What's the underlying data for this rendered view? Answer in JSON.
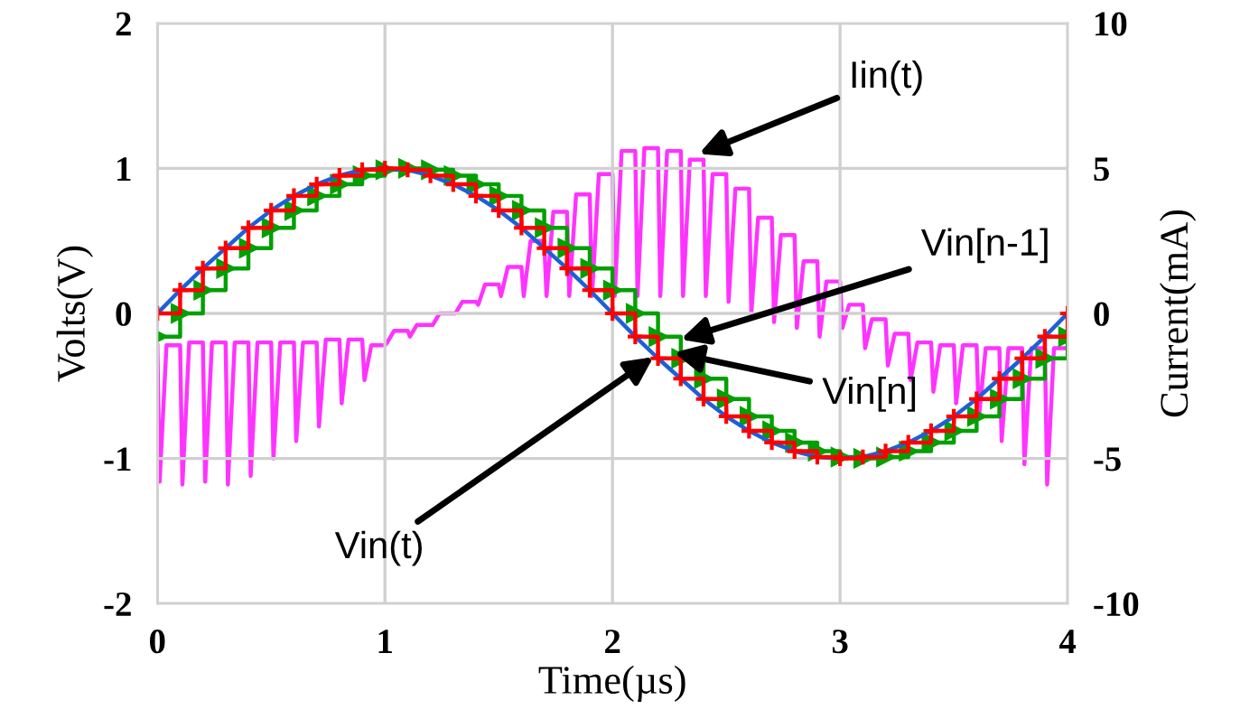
{
  "chart_data": {
    "type": "line",
    "xlabel": "Time(µs)",
    "ylabel": "Volts(V)",
    "y2label": "Current(mA)",
    "xlim": [
      0,
      4
    ],
    "xticks": [
      0,
      1,
      2,
      3,
      4
    ],
    "ylim": [
      -2,
      2
    ],
    "yticks": [
      -2,
      -1,
      0,
      1,
      2
    ],
    "y2lim": [
      -10,
      10
    ],
    "y2ticks": [
      -10,
      -5,
      0,
      5,
      10
    ],
    "grid": true,
    "legend": false,
    "x": [
      0,
      0.1,
      0.2,
      0.3,
      0.4,
      0.5,
      0.6,
      0.7,
      0.8,
      0.9,
      1.0,
      1.1,
      1.2,
      1.3,
      1.4,
      1.5,
      1.6,
      1.7,
      1.8,
      1.9,
      2.0,
      2.1,
      2.2,
      2.3,
      2.4,
      2.5,
      2.6,
      2.7,
      2.8,
      2.9,
      3.0,
      3.1,
      3.2,
      3.3,
      3.4,
      3.5,
      3.6,
      3.7,
      3.8,
      3.9,
      4.0
    ],
    "series": [
      {
        "type": "line",
        "color": "#ff33ff",
        "axis": "y2",
        "marker": "none",
        "x": [
          0,
          0.01,
          0.04,
          0.1,
          0.11,
          0.14,
          0.2,
          0.21,
          0.24,
          0.3,
          0.31,
          0.34,
          0.4,
          0.41,
          0.44,
          0.5,
          0.51,
          0.54,
          0.6,
          0.61,
          0.64,
          0.7,
          0.71,
          0.74,
          0.8,
          0.81,
          0.84,
          0.9,
          0.91,
          0.94,
          1.0,
          1.01,
          1.04,
          1.1,
          1.11,
          1.14,
          1.2,
          1.21,
          1.24,
          1.3,
          1.31,
          1.34,
          1.4,
          1.41,
          1.44,
          1.5,
          1.51,
          1.54,
          1.6,
          1.61,
          1.64,
          1.7,
          1.71,
          1.74,
          1.8,
          1.81,
          1.84,
          1.9,
          1.91,
          1.94,
          2.0,
          2.01,
          2.04,
          2.1,
          2.11,
          2.14,
          2.2,
          2.21,
          2.24,
          2.3,
          2.31,
          2.34,
          2.4,
          2.41,
          2.44,
          2.5,
          2.51,
          2.54,
          2.6,
          2.61,
          2.64,
          2.7,
          2.71,
          2.74,
          2.8,
          2.81,
          2.84,
          2.9,
          2.91,
          2.94,
          3.0,
          3.01,
          3.04,
          3.1,
          3.11,
          3.14,
          3.2,
          3.21,
          3.24,
          3.3,
          3.31,
          3.34,
          3.4,
          3.41,
          3.44,
          3.5,
          3.51,
          3.54,
          3.6,
          3.61,
          3.64,
          3.7,
          3.71,
          3.74,
          3.8,
          3.81,
          3.84,
          3.9,
          3.91,
          3.94,
          4.0
        ],
        "values": [
          -1.1,
          -5.8,
          -1.1,
          -1.1,
          -5.9,
          -1.0,
          -1.0,
          -5.8,
          -1.0,
          -1.0,
          -5.9,
          -1.0,
          -1.0,
          -5.6,
          -1.0,
          -1.0,
          -5.0,
          -1.0,
          -1.0,
          -4.4,
          -1.0,
          -1.0,
          -3.9,
          -0.9,
          -0.9,
          -3.1,
          -0.9,
          -0.9,
          -2.3,
          -1.1,
          -1.1,
          -1.0,
          -0.6,
          -0.6,
          -0.8,
          -0.4,
          -0.4,
          -0.4,
          0.0,
          0.0,
          0.0,
          0.4,
          0.4,
          0.3,
          1.0,
          1.0,
          0.6,
          1.6,
          1.6,
          0.6,
          2.5,
          2.5,
          0.6,
          3.5,
          3.5,
          0.6,
          4.1,
          4.1,
          0.6,
          4.8,
          4.8,
          0.6,
          5.6,
          5.6,
          0.6,
          5.7,
          5.7,
          0.6,
          5.6,
          5.6,
          0.6,
          5.3,
          5.3,
          0.6,
          4.8,
          4.8,
          0.4,
          4.3,
          4.3,
          0.0,
          3.3,
          3.3,
          -0.3,
          2.7,
          2.7,
          -0.5,
          1.8,
          1.8,
          -0.8,
          1.1,
          1.1,
          -0.5,
          0.3,
          0.3,
          -1.2,
          -0.2,
          -0.2,
          -1.8,
          -0.7,
          -0.7,
          -2.3,
          -1.0,
          -1.0,
          -2.7,
          -1.1,
          -1.1,
          -3.1,
          -1.1,
          -1.1,
          -3.6,
          -1.2,
          -1.2,
          -4.4,
          -1.2,
          -1.2,
          -5.2,
          -1.2,
          -1.2,
          -5.9,
          -1.2,
          -1.2
        ]
      },
      {
        "type": "step",
        "color": "#00a000",
        "marker": "triangle",
        "values": [
          -0.16,
          0,
          0.16,
          0.31,
          0.45,
          0.59,
          0.71,
          0.81,
          0.89,
          0.95,
          0.99,
          1,
          0.99,
          0.95,
          0.89,
          0.81,
          0.71,
          0.59,
          0.45,
          0.31,
          0.16,
          0,
          -0.16,
          -0.31,
          -0.45,
          -0.59,
          -0.71,
          -0.81,
          -0.89,
          -0.95,
          -0.99,
          -1,
          -0.99,
          -0.95,
          -0.89,
          -0.81,
          -0.71,
          -0.59,
          -0.45,
          -0.31,
          -0.16
        ]
      },
      {
        "type": "line",
        "color": "#1f5fd6",
        "marker": "none",
        "values": [
          0,
          0.16,
          0.31,
          0.45,
          0.59,
          0.71,
          0.81,
          0.89,
          0.95,
          0.99,
          1,
          0.99,
          0.95,
          0.89,
          0.81,
          0.71,
          0.59,
          0.45,
          0.31,
          0.16,
          0,
          -0.16,
          -0.31,
          -0.45,
          -0.59,
          -0.71,
          -0.81,
          -0.89,
          -0.95,
          -0.99,
          -1,
          -0.99,
          -0.95,
          -0.89,
          -0.81,
          -0.71,
          -0.59,
          -0.45,
          -0.31,
          -0.16,
          0
        ]
      },
      {
        "type": "step",
        "color": "#ff0000",
        "marker": "cross",
        "values": [
          0,
          0.16,
          0.31,
          0.45,
          0.59,
          0.71,
          0.81,
          0.89,
          0.95,
          0.99,
          1,
          0.99,
          0.95,
          0.89,
          0.81,
          0.71,
          0.59,
          0.45,
          0.31,
          0.16,
          0,
          -0.16,
          -0.31,
          -0.45,
          -0.59,
          -0.71,
          -0.81,
          -0.89,
          -0.95,
          -0.99,
          -1,
          -0.99,
          -0.95,
          -0.89,
          -0.81,
          -0.71,
          -0.59,
          -0.45,
          -0.31,
          -0.16,
          0
        ]
      }
    ],
    "annotations": [
      {
        "text": "Iin(t)",
        "x": 2.38,
        "y": 1.1
      },
      {
        "text": "Vin[n-1]",
        "x": 2.3,
        "y": -0.18
      },
      {
        "text": "Vin[n]",
        "x": 2.27,
        "y": -0.27
      },
      {
        "text": "Vin(t)",
        "x": 2.18,
        "y": -0.3
      }
    ]
  }
}
